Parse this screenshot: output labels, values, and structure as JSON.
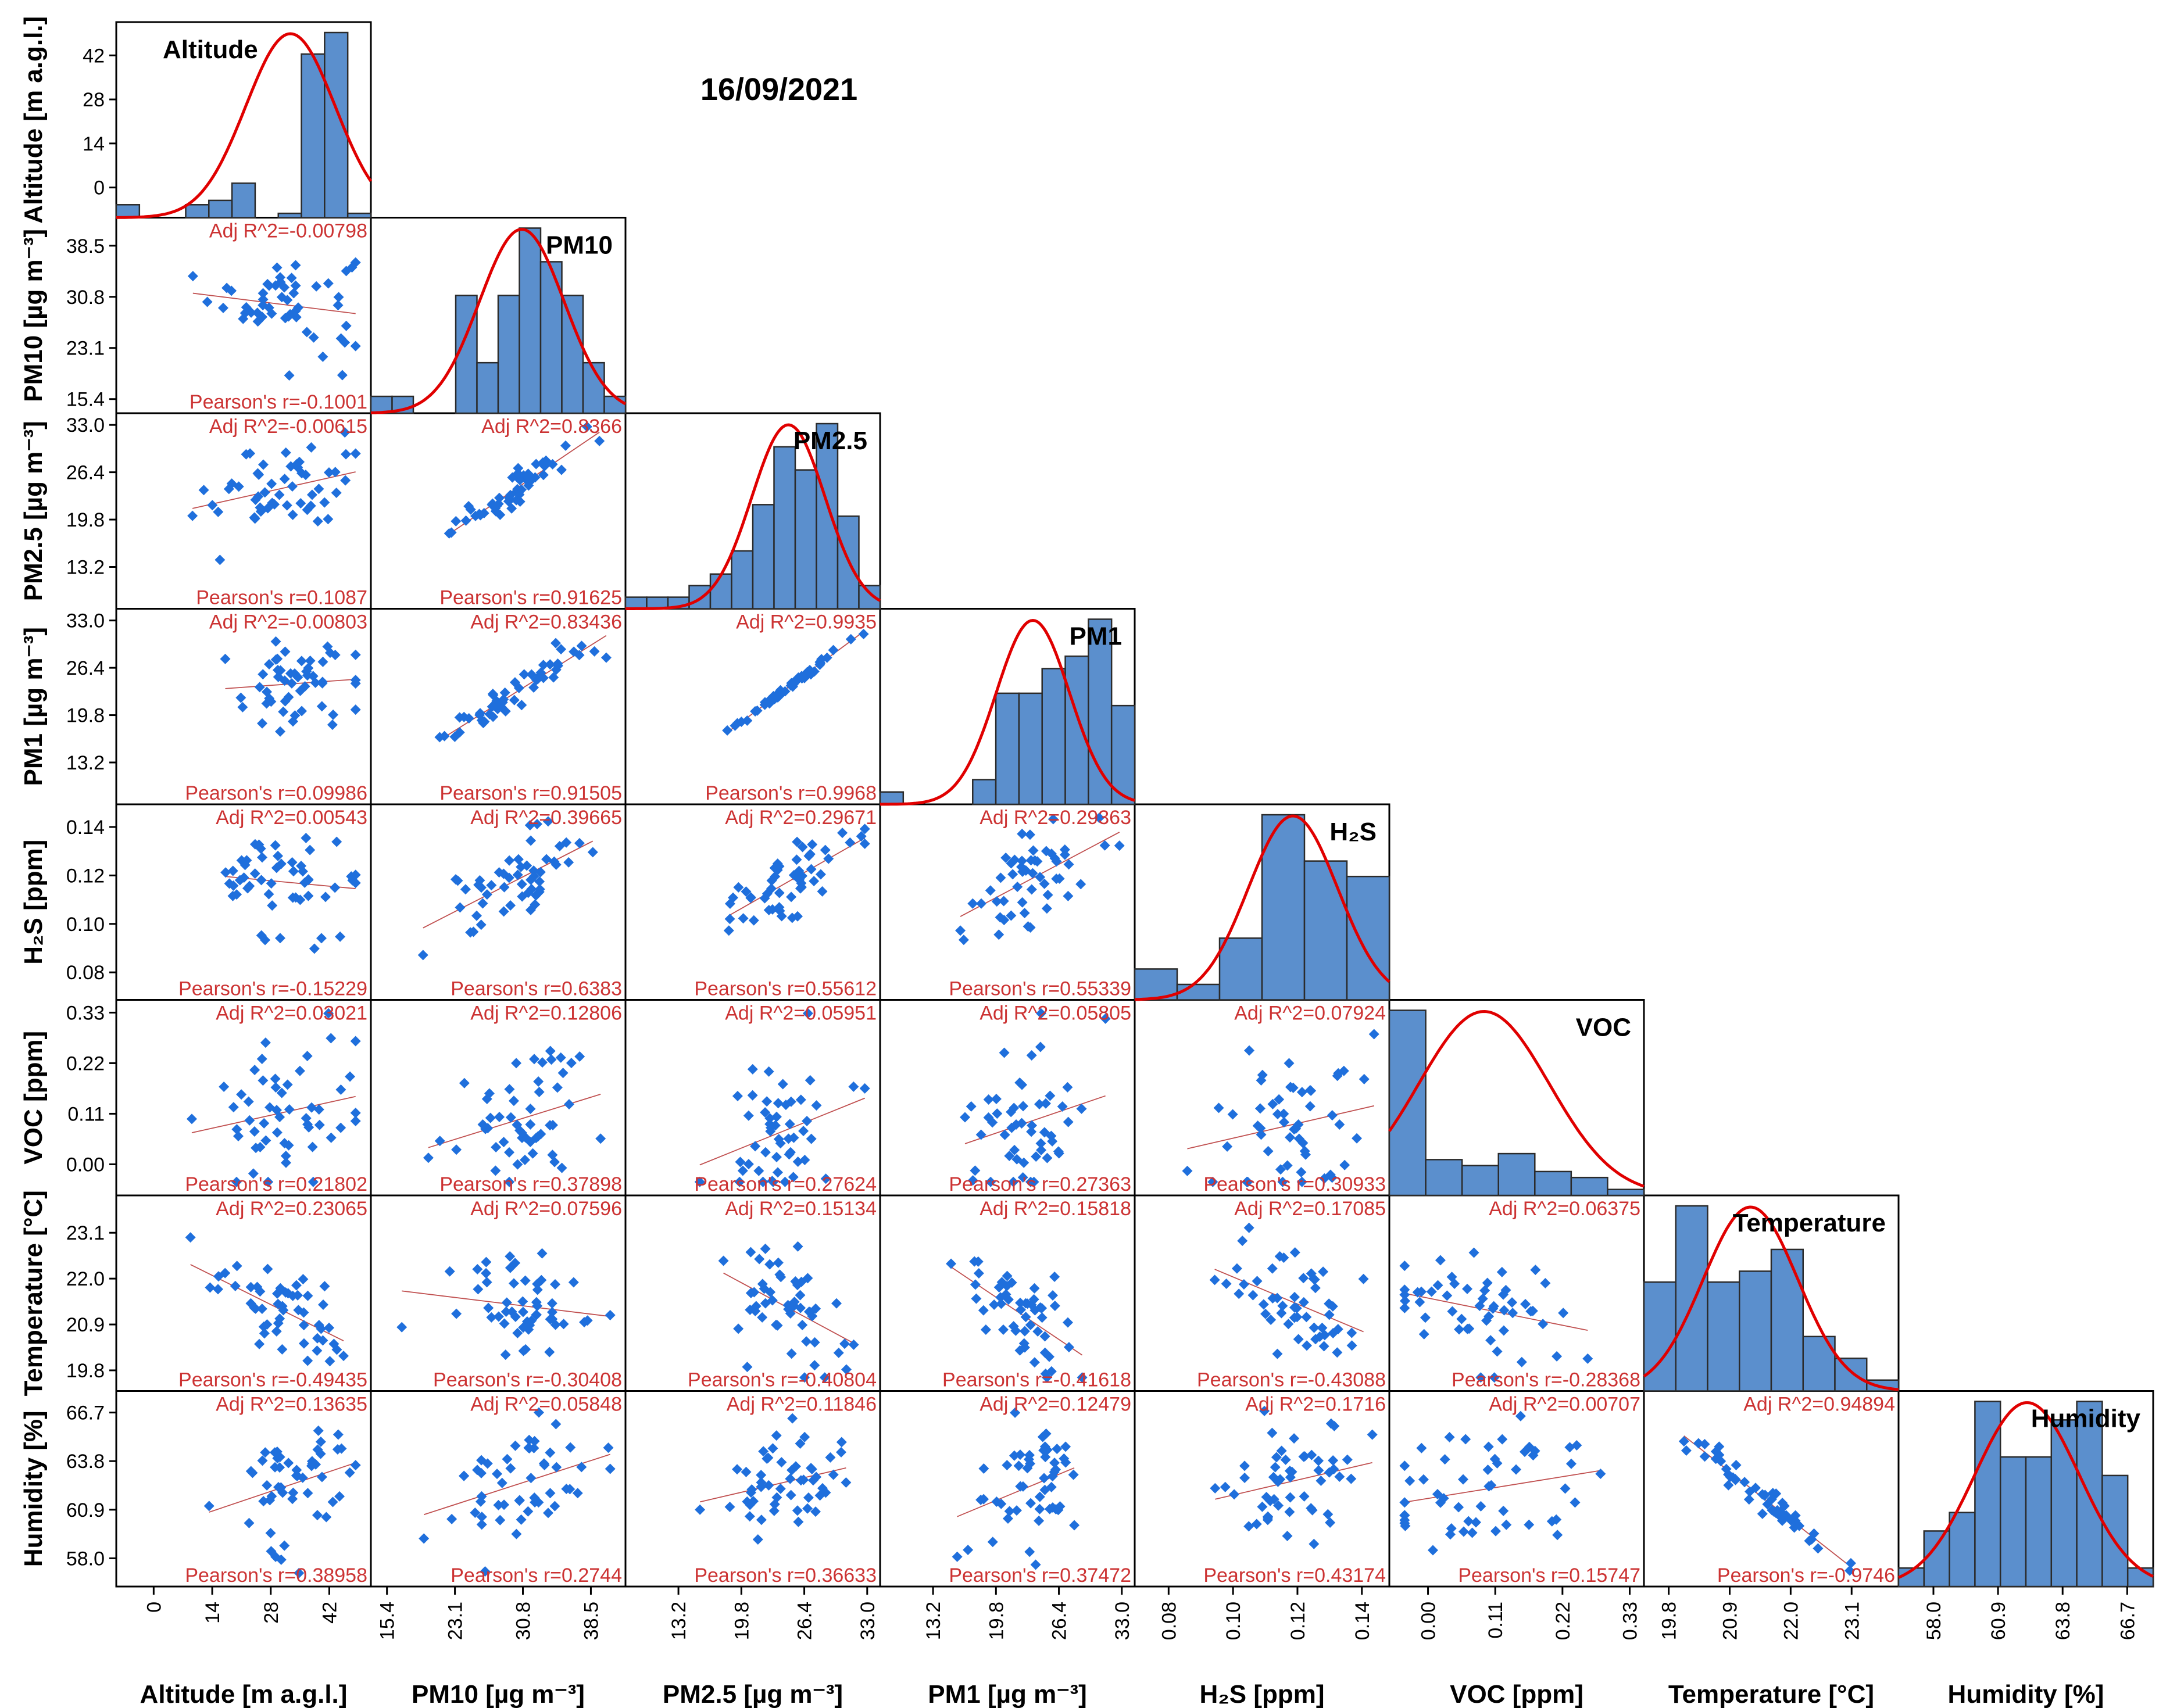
{
  "figure_title": "16/09/2021",
  "chart_data": {
    "type": "scatter",
    "title": "16/09/2021",
    "description_type": "correlation-matrix",
    "variables": [
      {
        "id": "alt",
        "name": "Altitude",
        "axis_label": "Altitude [m a.g.l.]",
        "xticks": [
          "0",
          "14",
          "28",
          "42"
        ],
        "yticks": [
          "0",
          "14",
          "28",
          "42"
        ],
        "range": [
          -7,
          50
        ],
        "mean": 32,
        "sd": 10
      },
      {
        "id": "pm10",
        "name": "PM10",
        "axis_label": "PM10 [µg m⁻³]",
        "xticks": [
          "15.4",
          "23.1",
          "30.8",
          "38.5"
        ],
        "yticks": [
          "15.4",
          "23.1",
          "30.8",
          "38.5"
        ],
        "range": [
          14.5,
          41.5
        ],
        "mean": 30.5,
        "sd": 4.5
      },
      {
        "id": "pm25",
        "name": "PM2.5",
        "axis_label": "PM2.5 [µg m⁻³]",
        "xticks": [
          "13.2",
          "19.8",
          "26.4",
          "33.0"
        ],
        "yticks": [
          "13.2",
          "19.8",
          "26.4",
          "33.0"
        ],
        "range": [
          8.5,
          33.5
        ],
        "mean": 24.5,
        "sd": 3.6
      },
      {
        "id": "pm1",
        "name": "PM1",
        "axis_label": "PM1 [µg m⁻³]",
        "xticks": [
          "13.2",
          "19.8",
          "26.4",
          "33.0"
        ],
        "yticks": [
          "13.2",
          "19.8",
          "26.4",
          "33.0"
        ],
        "range": [
          8.5,
          33.5
        ],
        "mean": 23.5,
        "sd": 3.6
      },
      {
        "id": "h2s",
        "name": "H₂S",
        "axis_label": "H₂S [ppm]",
        "xticks": [
          "0.08",
          "0.10",
          "0.12",
          "0.14"
        ],
        "yticks": [
          "0.08",
          "0.10",
          "0.12",
          "0.14"
        ],
        "range": [
          0.072,
          0.146
        ],
        "mean": 0.118,
        "sd": 0.013
      },
      {
        "id": "voc",
        "name": "VOC",
        "axis_label": "VOC [ppm]",
        "xticks": [
          "0.00",
          "0.11",
          "0.22",
          "0.33"
        ],
        "yticks": [
          "0.00",
          "0.11",
          "0.22",
          "0.33"
        ],
        "range": [
          -0.05,
          0.34
        ],
        "mean": 0.095,
        "sd": 0.1
      },
      {
        "id": "temp",
        "name": "Temperature",
        "axis_label": "Temperature [°C]",
        "xticks": [
          "19.8",
          "20.9",
          "22.0",
          "23.1"
        ],
        "yticks": [
          "19.8",
          "20.9",
          "22.0",
          "23.1"
        ],
        "range": [
          19.5,
          23.8
        ],
        "mean": 21.3,
        "sd": 0.8
      },
      {
        "id": "hum",
        "name": "Humidity",
        "axis_label": "Humidity [%]",
        "xticks": [
          "58.0",
          "60.9",
          "63.8",
          "66.7"
        ],
        "yticks": [
          "58.0",
          "60.9",
          "63.8",
          "66.7"
        ],
        "range": [
          56.8,
          67.5
        ],
        "mean": 62.2,
        "sd": 2.2
      }
    ],
    "histograms": [
      [
        3,
        0,
        0,
        3,
        4,
        8,
        0,
        1,
        38,
        43,
        1
      ],
      [
        1,
        1,
        0,
        0,
        7,
        3,
        7,
        11,
        9,
        7,
        3,
        1
      ],
      [
        1,
        1,
        1,
        2,
        3,
        5,
        9,
        14,
        12,
        16,
        8,
        2
      ],
      [
        1,
        0,
        0,
        0,
        2,
        9,
        9,
        11,
        12,
        15,
        8
      ],
      [
        2,
        1,
        4,
        12,
        9,
        8
      ],
      [
        31,
        6,
        5,
        7,
        4,
        3,
        1
      ],
      [
        10,
        17,
        10,
        11,
        13,
        5,
        3,
        1
      ],
      [
        1,
        3,
        4,
        10,
        7,
        7,
        9,
        10,
        6,
        1
      ]
    ],
    "pairs": [
      {
        "x": "alt",
        "y": "pm10",
        "adj_r2": "Adj R^2=-0.00798",
        "pearson": "Pearson's r=-0.1001"
      },
      {
        "x": "alt",
        "y": "pm25",
        "adj_r2": "Adj R^2=-0.00615",
        "pearson": "Pearson's r=0.1087"
      },
      {
        "x": "pm10",
        "y": "pm25",
        "adj_r2": "Adj R^2=0.8366",
        "pearson": "Pearson's r=0.91625"
      },
      {
        "x": "alt",
        "y": "pm1",
        "adj_r2": "Adj R^2=-0.00803",
        "pearson": "Pearson's r=0.09986"
      },
      {
        "x": "pm10",
        "y": "pm1",
        "adj_r2": "Adj R^2=0.83436",
        "pearson": "Pearson's r=0.91505"
      },
      {
        "x": "pm25",
        "y": "pm1",
        "adj_r2": "Adj R^2=0.9935",
        "pearson": "Pearson's r=0.9968"
      },
      {
        "x": "alt",
        "y": "h2s",
        "adj_r2": "Adj R^2=0.00543",
        "pearson": "Pearson's r=-0.15229"
      },
      {
        "x": "pm10",
        "y": "h2s",
        "adj_r2": "Adj R^2=0.39665",
        "pearson": "Pearson's r=0.6383"
      },
      {
        "x": "pm25",
        "y": "h2s",
        "adj_r2": "Adj R^2=0.29671",
        "pearson": "Pearson's r=0.55612"
      },
      {
        "x": "pm1",
        "y": "h2s",
        "adj_r2": "Adj R^2=0.29363",
        "pearson": "Pearson's r=0.55339"
      },
      {
        "x": "alt",
        "y": "voc",
        "adj_r2": "Adj R^2=0.03021",
        "pearson": "Pearson's r=0.21802"
      },
      {
        "x": "pm10",
        "y": "voc",
        "adj_r2": "Adj R^2=0.12806",
        "pearson": "Pearson's r=0.37898"
      },
      {
        "x": "pm25",
        "y": "voc",
        "adj_r2": "Adj R^2=0.05951",
        "pearson": "Pearson's r=0.27624"
      },
      {
        "x": "pm1",
        "y": "voc",
        "adj_r2": "Adj R^2=0.05805",
        "pearson": "Pearson's r=0.27363"
      },
      {
        "x": "h2s",
        "y": "voc",
        "adj_r2": "Adj R^2=0.07924",
        "pearson": "Pearson's r=0.30933"
      },
      {
        "x": "alt",
        "y": "temp",
        "adj_r2": "Adj R^2=0.23065",
        "pearson": "Pearson's r=-0.49435"
      },
      {
        "x": "pm10",
        "y": "temp",
        "adj_r2": "Adj R^2=0.07596",
        "pearson": "Pearson's r=-0.30408"
      },
      {
        "x": "pm25",
        "y": "temp",
        "adj_r2": "Adj R^2=0.15134",
        "pearson": "Pearson's r=-0.40804"
      },
      {
        "x": "pm1",
        "y": "temp",
        "adj_r2": "Adj R^2=0.15818",
        "pearson": "Pearson's r=-0.41618"
      },
      {
        "x": "h2s",
        "y": "temp",
        "adj_r2": "Adj R^2=0.17085",
        "pearson": "Pearson's r=-0.43088"
      },
      {
        "x": "voc",
        "y": "temp",
        "adj_r2": "Adj R^2=0.06375",
        "pearson": "Pearson's r=-0.28368"
      },
      {
        "x": "alt",
        "y": "hum",
        "adj_r2": "Adj R^2=0.13635",
        "pearson": "Pearson's r=0.38958"
      },
      {
        "x": "pm10",
        "y": "hum",
        "adj_r2": "Adj R^2=0.05848",
        "pearson": "Pearson's r=0.2744"
      },
      {
        "x": "pm25",
        "y": "hum",
        "adj_r2": "Adj R^2=0.11846",
        "pearson": "Pearson's r=0.36633"
      },
      {
        "x": "pm1",
        "y": "hum",
        "adj_r2": "Adj R^2=0.12479",
        "pearson": "Pearson's r=0.37472"
      },
      {
        "x": "h2s",
        "y": "hum",
        "adj_r2": "Adj R^2=0.1716",
        "pearson": "Pearson's r=0.43174"
      },
      {
        "x": "voc",
        "y": "hum",
        "adj_r2": "Adj R^2=0.00707",
        "pearson": "Pearson's r=0.15747"
      },
      {
        "x": "temp",
        "y": "hum",
        "adj_r2": "Adj R^2=0.94894",
        "pearson": "Pearson's r=-0.9746"
      }
    ]
  },
  "colors": {
    "bar": "#5b8fcd",
    "curve": "#e00000",
    "point": "#1f6fdc",
    "fit": "#c05050",
    "stat_text": "#cc3333"
  }
}
